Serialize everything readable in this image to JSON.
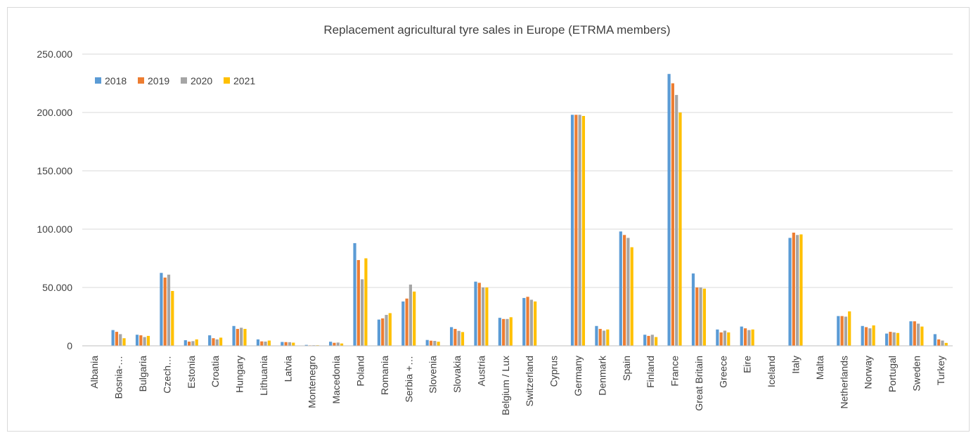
{
  "chart_data": {
    "type": "bar",
    "title": "Replacement agricultural tyre sales in Europe (ETRMA members)",
    "xlabel": "",
    "ylabel": "",
    "ylim": [
      0,
      250000
    ],
    "yticks": [
      0,
      50000,
      100000,
      150000,
      200000,
      250000
    ],
    "ytick_labels": [
      "0",
      "50.000",
      "100.000",
      "150.000",
      "200.000",
      "250.000"
    ],
    "grid": true,
    "legend_position": "top-left",
    "categories": [
      "Albania",
      "Bosnia-…",
      "Bulgaria",
      "Czech…",
      "Estonia",
      "Croatia",
      "Hungary",
      "Lithuania",
      "Latvia",
      "Montenegro",
      "Macedonia",
      "Poland",
      "Romania",
      "Serbia +…",
      "Slovenia",
      "Slovakia",
      "Austria",
      "Belgium / Lux",
      "Switzerland",
      "Cyprus",
      "Germany",
      "Denmark",
      "Spain",
      "Finland",
      "France",
      "Great Britain",
      "Greece",
      "Eire",
      "Iceland",
      "Italy",
      "Malta",
      "Netherlands",
      "Norway",
      "Portugal",
      "Sweden",
      "Turkey"
    ],
    "series": [
      {
        "name": "2018",
        "color": "#5B9BD5",
        "values": [
          0,
          13500,
          9500,
          62500,
          4800,
          9000,
          17000,
          5500,
          3300,
          800,
          3500,
          88000,
          22500,
          38000,
          5000,
          16000,
          55000,
          24000,
          41000,
          0,
          198000,
          17000,
          98000,
          9500,
          233000,
          62000,
          14000,
          16500,
          0,
          92500,
          0,
          25500,
          17000,
          10500,
          21000,
          10000
        ]
      },
      {
        "name": "2019",
        "color": "#ED7D31",
        "values": [
          0,
          12000,
          9000,
          58500,
          3600,
          6500,
          14500,
          3800,
          3200,
          400,
          2600,
          73500,
          23500,
          40500,
          4400,
          14500,
          54000,
          23000,
          42000,
          0,
          198000,
          14500,
          95000,
          8500,
          225000,
          50000,
          11500,
          15000,
          0,
          97000,
          0,
          25500,
          16000,
          12000,
          21000,
          5500
        ]
      },
      {
        "name": "2020",
        "color": "#A5A5A5",
        "values": [
          0,
          10000,
          7500,
          61000,
          4000,
          5500,
          15500,
          3600,
          3100,
          500,
          2800,
          57000,
          26500,
          52500,
          4200,
          12800,
          50000,
          23000,
          39500,
          0,
          198000,
          13000,
          92500,
          9500,
          215000,
          50000,
          13000,
          13500,
          0,
          95000,
          0,
          25000,
          15000,
          11500,
          19000,
          4500
        ]
      },
      {
        "name": "2021",
        "color": "#FFC000",
        "values": [
          0,
          6500,
          8500,
          47000,
          5500,
          7000,
          14500,
          4500,
          2700,
          500,
          2000,
          75000,
          28000,
          46500,
          3500,
          11800,
          50000,
          24500,
          38000,
          0,
          197000,
          14000,
          84500,
          7500,
          200000,
          49000,
          11500,
          14000,
          0,
          95500,
          0,
          29500,
          17500,
          11000,
          16500,
          2500
        ]
      }
    ]
  }
}
